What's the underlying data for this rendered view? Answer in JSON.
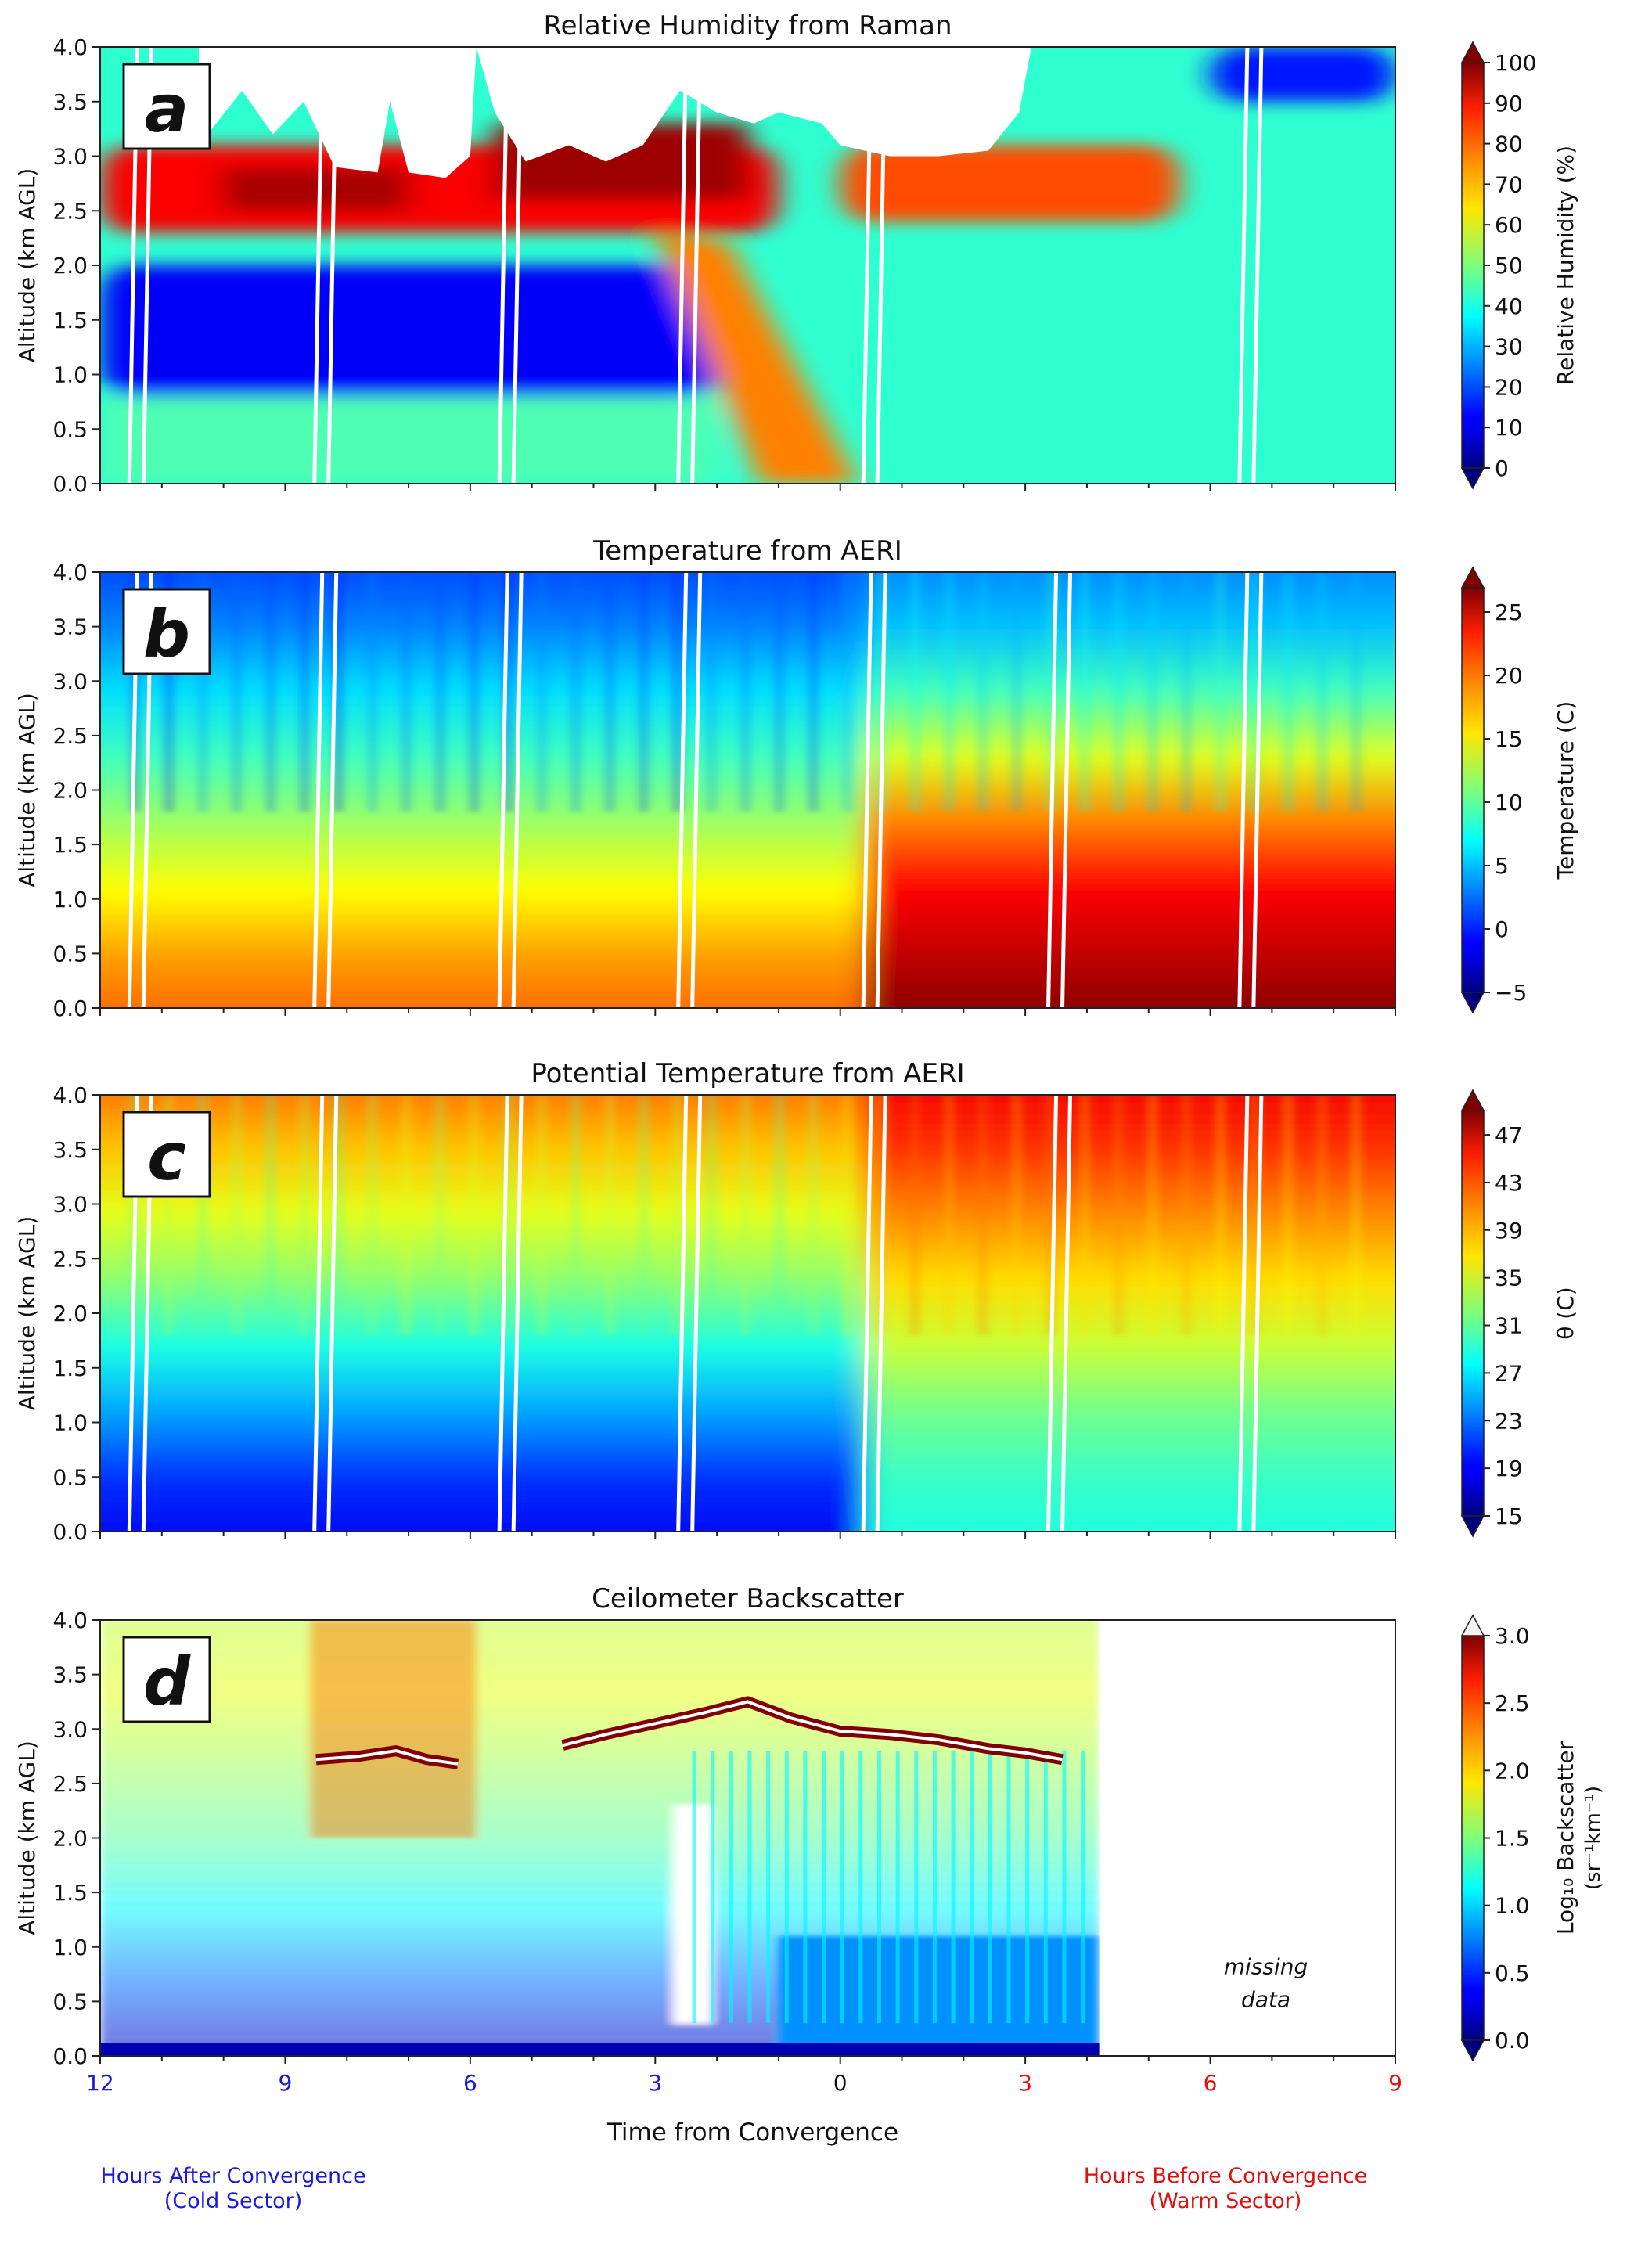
{
  "figure": {
    "xlabel": "Time from Convergence",
    "x_ticks": [
      {
        "value": -12,
        "label": "12",
        "color": "#1a1adb"
      },
      {
        "value": -9,
        "label": "9",
        "color": "#1a1adb"
      },
      {
        "value": -6,
        "label": "6",
        "color": "#1a1adb"
      },
      {
        "value": -3,
        "label": "3",
        "color": "#1a1adb"
      },
      {
        "value": 0,
        "label": "0",
        "color": "#111111"
      },
      {
        "value": 3,
        "label": "3",
        "color": "#e01010"
      },
      {
        "value": 6,
        "label": "6",
        "color": "#e01010"
      },
      {
        "value": 9,
        "label": "9",
        "color": "#e01010"
      }
    ],
    "left_note": {
      "line1": "Hours After Convergence",
      "line2": "(Cold Sector)",
      "color": "#1a1adb"
    },
    "right_note": {
      "line1": "Hours Before Convergence",
      "line2": "(Warm Sector)",
      "color": "#e01010"
    }
  },
  "chart_data": [
    {
      "type": "heatmap",
      "panel_letter": "a",
      "title": "Relative Humidity from Raman",
      "ylabel": "Altitude (km AGL)",
      "colorbar_label": "Relative Humidity (%)",
      "xlim": [
        -12,
        9
      ],
      "ylim": [
        0,
        4
      ],
      "y_ticks": [
        "0.0",
        "0.5",
        "1.0",
        "1.5",
        "2.0",
        "2.5",
        "3.0",
        "3.5",
        "4.0"
      ],
      "colorbar_ticks": [
        "0",
        "10",
        "20",
        "30",
        "40",
        "50",
        "60",
        "70",
        "80",
        "90",
        "100"
      ],
      "colorbar_range": [
        0,
        100
      ],
      "colormap": "jet",
      "extend": "both",
      "gap_times": [
        -11.4,
        -8.4,
        -5.4,
        -2.5,
        0.5,
        6.6
      ],
      "features": [
        {
          "name": "dry-layer-cold-sector",
          "t0": -12,
          "t1": -2,
          "z0": 0.8,
          "z1": 2.0,
          "value": 12
        },
        {
          "name": "moist-layer-aloft-cold",
          "t0": -12,
          "t1": -1,
          "z0": 2.3,
          "z1": 3.1,
          "value": 88
        },
        {
          "name": "moist-band-descending",
          "t0": -2.5,
          "t1": 0.3,
          "z0": 0.0,
          "z1": 2.4,
          "value": 75
        },
        {
          "name": "moist-layer-aloft-warm",
          "t0": 0,
          "t1": 5.5,
          "z0": 2.4,
          "z1": 3.1,
          "value": 80
        },
        {
          "name": "dry-layer-top-warm",
          "t0": 6,
          "t1": 9,
          "z0": 3.5,
          "z1": 4.0,
          "value": 15
        }
      ]
    },
    {
      "type": "heatmap",
      "panel_letter": "b",
      "title": "Temperature from AERI",
      "ylabel": "Altitude (km AGL)",
      "colorbar_label": "Temperature (C)",
      "xlim": [
        -12,
        9
      ],
      "ylim": [
        0,
        4
      ],
      "y_ticks": [
        "0.0",
        "0.5",
        "1.0",
        "1.5",
        "2.0",
        "2.5",
        "3.0",
        "3.5",
        "4.0"
      ],
      "colorbar_ticks": [
        "−5",
        "0",
        "5",
        "10",
        "15",
        "20",
        "25"
      ],
      "colorbar_range": [
        -5,
        27
      ],
      "colormap": "jet",
      "extend": "both",
      "gap_times": [
        -11.4,
        -8.4,
        -5.4,
        -2.5,
        0.5,
        3.5,
        6.6
      ],
      "features": [
        {
          "name": "cold-sector-surface",
          "t0": -12,
          "t1": 0.4,
          "z0": 0,
          "z1": 0.5,
          "value": 18
        },
        {
          "name": "warm-sector-surface",
          "t0": 0.4,
          "t1": 9,
          "z0": 0,
          "z1": 1.0,
          "value": 25
        },
        {
          "name": "cold-sector-aloft",
          "t0": -12,
          "t1": 0.4,
          "z0": 3.5,
          "z1": 4.0,
          "value": 1
        },
        {
          "name": "warm-sector-aloft",
          "t0": 0.4,
          "t1": 9,
          "z0": 3.5,
          "z1": 4.0,
          "value": 4
        }
      ]
    },
    {
      "type": "heatmap",
      "panel_letter": "c",
      "title": "Potential Temperature from AERI",
      "ylabel": "Altitude (km AGL)",
      "colorbar_label": "θ (C)",
      "xlim": [
        -12,
        9
      ],
      "ylim": [
        0,
        4
      ],
      "y_ticks": [
        "0.0",
        "0.5",
        "1.0",
        "1.5",
        "2.0",
        "2.5",
        "3.0",
        "3.5",
        "4.0"
      ],
      "colorbar_ticks": [
        "15",
        "19",
        "23",
        "27",
        "31",
        "35",
        "39",
        "43",
        "47"
      ],
      "colorbar_range": [
        15,
        50
      ],
      "colormap": "jet",
      "extend": "both",
      "gap_times": [
        -11.4,
        -8.4,
        -5.4,
        -2.5,
        0.5,
        3.5,
        6.6
      ],
      "features": [
        {
          "name": "cold-sector-surface",
          "t0": -12,
          "t1": 0.4,
          "z0": 0,
          "z1": 0.5,
          "value": 20
        },
        {
          "name": "warm-sector-surface",
          "t0": 0.4,
          "t1": 9,
          "z0": 0,
          "z1": 0.5,
          "value": 29
        },
        {
          "name": "cold-sector-aloft",
          "t0": -12,
          "t1": 0.4,
          "z0": 3.5,
          "z1": 4.0,
          "value": 42
        },
        {
          "name": "warm-sector-aloft",
          "t0": 0.4,
          "t1": 9,
          "z0": 3.5,
          "z1": 4.0,
          "value": 45
        }
      ]
    },
    {
      "type": "heatmap",
      "panel_letter": "d",
      "title": "Ceilometer Backscatter",
      "ylabel": "Altitude (km AGL)",
      "colorbar_label": "Log₁₀ Backscatter",
      "colorbar_label2": "(sr⁻¹km⁻¹)",
      "xlim": [
        -12,
        9
      ],
      "ylim": [
        0,
        4
      ],
      "y_ticks": [
        "0.0",
        "0.5",
        "1.0",
        "1.5",
        "2.0",
        "2.5",
        "3.0",
        "3.5",
        "4.0"
      ],
      "colorbar_ticks": [
        "0.0",
        "0.5",
        "1.0",
        "1.5",
        "2.0",
        "2.5",
        "3.0"
      ],
      "colorbar_range": [
        0,
        3
      ],
      "colormap": "jet",
      "extend": "both",
      "data_end_time": 4.2,
      "missing_label_line1": "missing",
      "missing_label_line2": "data",
      "features": [
        {
          "name": "cloud-base-cold",
          "t0": -8.5,
          "t1": -6,
          "z": 2.75,
          "value": 3.0
        },
        {
          "name": "cloud-base-frontal",
          "t0": -4.5,
          "t1": 3.6,
          "z": 2.95,
          "value": 3.0
        },
        {
          "name": "boundary-layer-warm",
          "t0": -1,
          "t1": 4.2,
          "z0": 0,
          "z1": 1.0,
          "value": 0.8
        },
        {
          "name": "surface-layer",
          "t0": -12,
          "t1": 4.2,
          "z0": 0,
          "z1": 0.2,
          "value": 0.3
        }
      ]
    }
  ]
}
